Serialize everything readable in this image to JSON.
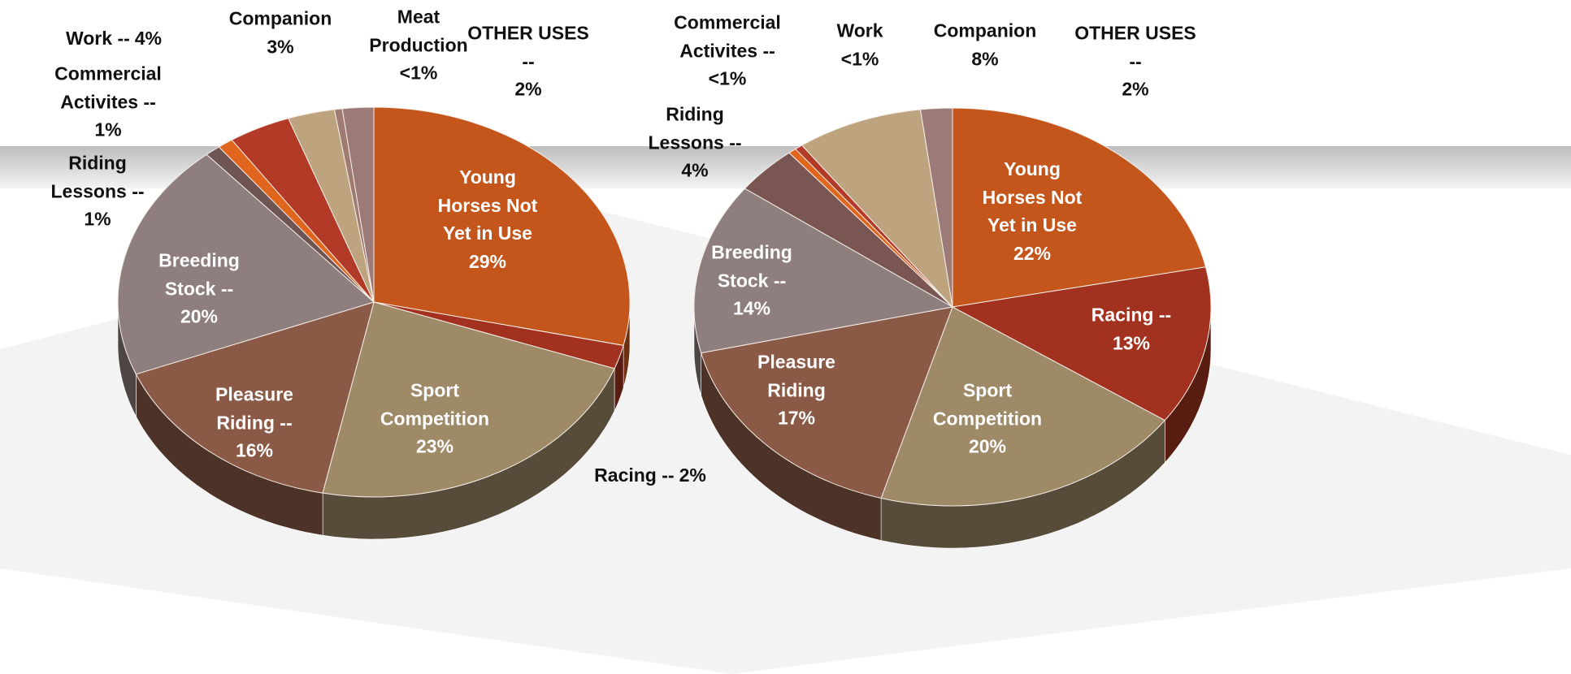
{
  "chart_data": [
    {
      "type": "pie",
      "categories": [
        "Young Horses Not Yet in Use",
        "Racing --",
        "Sport Competition",
        "Pleasure Riding --",
        "Breeding Stock --",
        "Riding Lessons --",
        "Commercial Activites --",
        "Work --",
        "Companion",
        "Meat Production",
        "OTHER USES --"
      ],
      "values": [
        29,
        2,
        23,
        16,
        20,
        1,
        1,
        4,
        3,
        0.5,
        2
      ],
      "value_labels": [
        "29%",
        "2%",
        "23%",
        "16%",
        "20%",
        "1%",
        "1%",
        "4%",
        "3%",
        "<1%",
        "2%"
      ],
      "colors": [
        "#c4561c",
        "#a2321f",
        "#9f8a68",
        "#8a5a47",
        "#8e7e7e",
        "#6e5452",
        "#e0661e",
        "#b23a26",
        "#bea37f",
        "#a07b72",
        "#9c7a78"
      ]
    },
    {
      "type": "pie",
      "categories": [
        "Young Horses Not Yet in Use",
        "Racing --",
        "Sport Competition",
        "Pleasure Riding",
        "Breeding Stock --",
        "Riding Lessons --",
        "Commercial Activites --",
        "Work",
        "Companion",
        "OTHER USES --"
      ],
      "values": [
        22,
        13,
        20,
        17,
        14,
        4,
        0.5,
        0.5,
        8,
        2
      ],
      "value_labels": [
        "22%",
        "13%",
        "20%",
        "17%",
        "14%",
        "4%",
        "<1%",
        "<1%",
        "8%",
        "2%"
      ],
      "colors": [
        "#c4561c",
        "#a2321f",
        "#9f8a68",
        "#8a5a47",
        "#8e7e7e",
        "#7a5652",
        "#e0661e",
        "#b23a26",
        "#bea37f",
        "#9c7a78"
      ]
    }
  ]
}
